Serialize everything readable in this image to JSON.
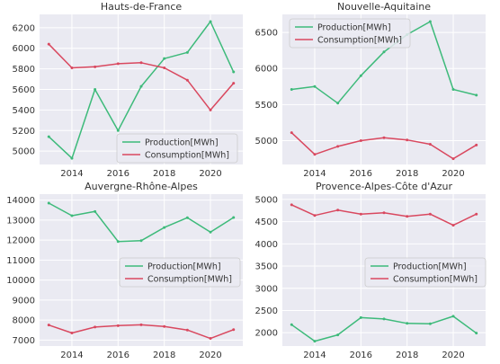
{
  "chart_data": [
    {
      "type": "line",
      "title": "Hauts-de-France",
      "x": [
        2013,
        2014,
        2015,
        2016,
        2017,
        2018,
        2019,
        2020,
        2021
      ],
      "xticks": [
        2014,
        2016,
        2018,
        2020
      ],
      "xlim": [
        2012.6,
        2021.4
      ],
      "ylim": [
        4870,
        6330
      ],
      "yticks": [
        5000,
        5200,
        5400,
        5600,
        5800,
        6000,
        6200
      ],
      "grid": true,
      "legend": "bottom-right",
      "series": [
        {
          "name": "Production[MWh]",
          "color": "#3dba7a",
          "values": [
            5140,
            4930,
            5600,
            5200,
            5630,
            5900,
            5960,
            6260,
            5770
          ]
        },
        {
          "name": "Consumption[MWh]",
          "color": "#d9485f",
          "values": [
            6040,
            5810,
            5820,
            5850,
            5860,
            5810,
            5690,
            5400,
            5660
          ]
        }
      ]
    },
    {
      "type": "line",
      "title": "Nouvelle-Aquitaine",
      "x": [
        2013,
        2014,
        2015,
        2016,
        2017,
        2018,
        2019,
        2020,
        2021
      ],
      "xticks": [
        2014,
        2016,
        2018,
        2020
      ],
      "xlim": [
        2012.6,
        2021.4
      ],
      "ylim": [
        4670,
        6750
      ],
      "yticks": [
        5000,
        5500,
        6000,
        6500
      ],
      "grid": true,
      "legend": "top-left",
      "series": [
        {
          "name": "Production[MWh]",
          "color": "#3dba7a",
          "values": [
            5710,
            5750,
            5520,
            5900,
            6230,
            6470,
            6650,
            5710,
            5630
          ]
        },
        {
          "name": "Consumption[MWh]",
          "color": "#d9485f",
          "values": [
            5110,
            4810,
            4920,
            5000,
            5040,
            5010,
            4950,
            4750,
            4940
          ]
        }
      ]
    },
    {
      "type": "line",
      "title": "Auvergne-Rhône-Alpes",
      "x": [
        2013,
        2014,
        2015,
        2016,
        2017,
        2018,
        2019,
        2020,
        2021
      ],
      "xticks": [
        2014,
        2016,
        2018,
        2020
      ],
      "xlim": [
        2012.6,
        2021.4
      ],
      "ylim": [
        6700,
        14300
      ],
      "yticks": [
        7000,
        8000,
        9000,
        10000,
        11000,
        12000,
        13000,
        14000
      ],
      "grid": true,
      "legend": "center-right",
      "series": [
        {
          "name": "Production[MWh]",
          "color": "#3dba7a",
          "values": [
            13850,
            13220,
            13430,
            11930,
            11970,
            12630,
            13120,
            12400,
            13130
          ]
        },
        {
          "name": "Consumption[MWh]",
          "color": "#d9485f",
          "values": [
            7750,
            7350,
            7650,
            7720,
            7760,
            7680,
            7500,
            7080,
            7520
          ]
        }
      ]
    },
    {
      "type": "line",
      "title": "Provence-Alpes-Côte d'Azur",
      "x": [
        2013,
        2014,
        2015,
        2016,
        2017,
        2018,
        2019,
        2020,
        2021
      ],
      "xticks": [
        2014,
        2016,
        2018,
        2020
      ],
      "xlim": [
        2012.6,
        2021.4
      ],
      "ylim": [
        1700,
        5120
      ],
      "yticks": [
        2000,
        2500,
        3000,
        3500,
        4000,
        4500,
        5000
      ],
      "grid": true,
      "legend": "center-right",
      "series": [
        {
          "name": "Production[MWh]",
          "color": "#3dba7a",
          "values": [
            2180,
            1810,
            1950,
            2340,
            2310,
            2210,
            2200,
            2370,
            1990
          ]
        },
        {
          "name": "Consumption[MWh]",
          "color": "#d9485f",
          "values": [
            4880,
            4640,
            4760,
            4670,
            4700,
            4620,
            4670,
            4420,
            4670
          ]
        }
      ]
    }
  ]
}
